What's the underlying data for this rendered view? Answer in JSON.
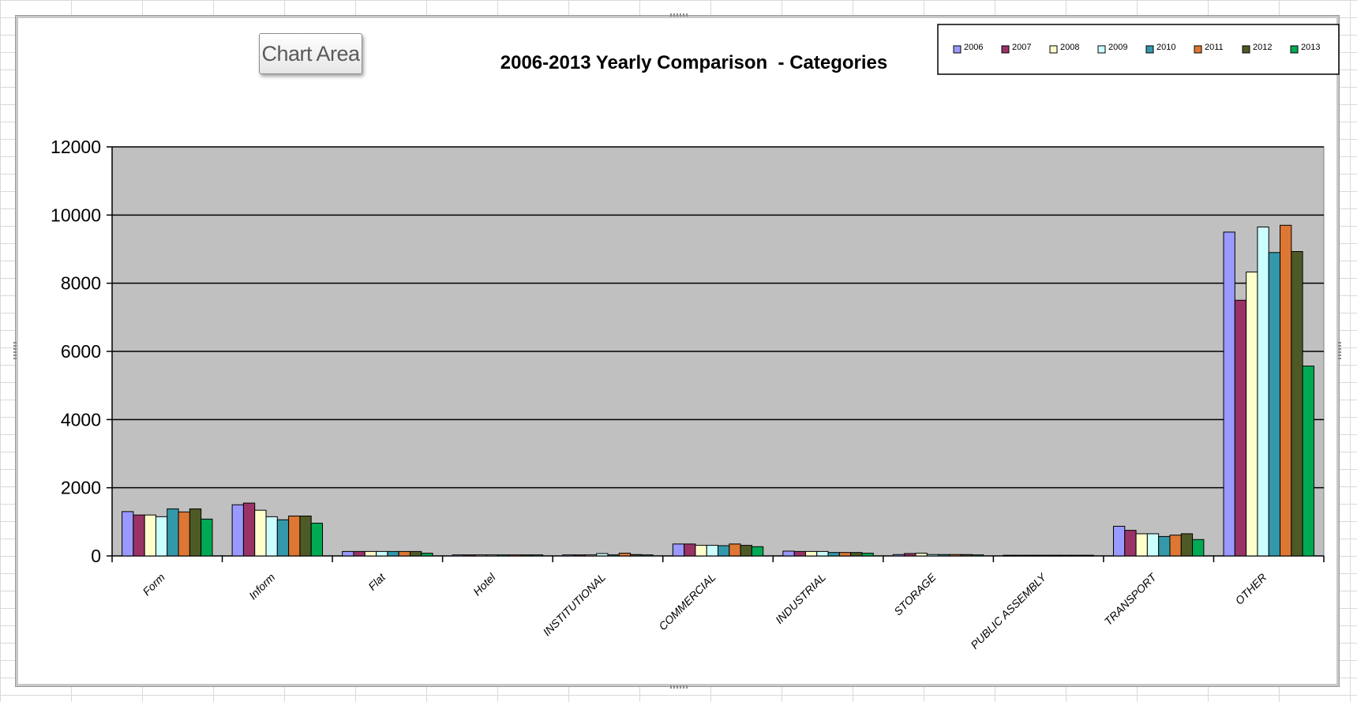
{
  "tooltip": {
    "label": "Chart Area"
  },
  "chart_data": {
    "type": "bar",
    "title": "2006-2013 Yearly Comparison  - Categories",
    "xlabel": "",
    "ylabel": "",
    "ylim": [
      0,
      12000
    ],
    "yticks": [
      0,
      2000,
      4000,
      6000,
      8000,
      10000,
      12000
    ],
    "grid": true,
    "legend_position": "top-right",
    "plot_background": "#c0c0c0",
    "categories": [
      "Form",
      "Inform",
      "Flat",
      "Hotel",
      "INSTITUTIONAL",
      "COMMERCIAL",
      "INDUSTRIAL",
      "STORAGE",
      "PUBLIC ASSEMBLY",
      "TRANSPORT",
      "OTHER"
    ],
    "series": [
      {
        "name": "2006",
        "color": "#9999ff",
        "values": [
          1300,
          1500,
          130,
          30,
          30,
          350,
          140,
          40,
          20,
          870,
          9500
        ]
      },
      {
        "name": "2007",
        "color": "#993366",
        "values": [
          1200,
          1550,
          130,
          30,
          30,
          350,
          130,
          70,
          20,
          750,
          7500
        ]
      },
      {
        "name": "2008",
        "color": "#ffffcc",
        "values": [
          1200,
          1340,
          130,
          30,
          30,
          310,
          130,
          80,
          20,
          650,
          8330
        ]
      },
      {
        "name": "2009",
        "color": "#ccffff",
        "values": [
          1150,
          1150,
          130,
          30,
          70,
          310,
          130,
          40,
          20,
          650,
          9650
        ]
      },
      {
        "name": "2010",
        "color": "#3399aa",
        "values": [
          1380,
          1060,
          130,
          30,
          30,
          300,
          100,
          40,
          20,
          570,
          8900
        ]
      },
      {
        "name": "2011",
        "color": "#dd7733",
        "values": [
          1290,
          1170,
          130,
          30,
          80,
          350,
          100,
          40,
          20,
          610,
          9700
        ]
      },
      {
        "name": "2012",
        "color": "#4d5a26",
        "values": [
          1380,
          1170,
          130,
          30,
          40,
          310,
          100,
          40,
          20,
          650,
          8930
        ]
      },
      {
        "name": "2013",
        "color": "#00aa55",
        "values": [
          1080,
          960,
          80,
          30,
          30,
          270,
          80,
          30,
          20,
          480,
          5570
        ]
      }
    ]
  }
}
